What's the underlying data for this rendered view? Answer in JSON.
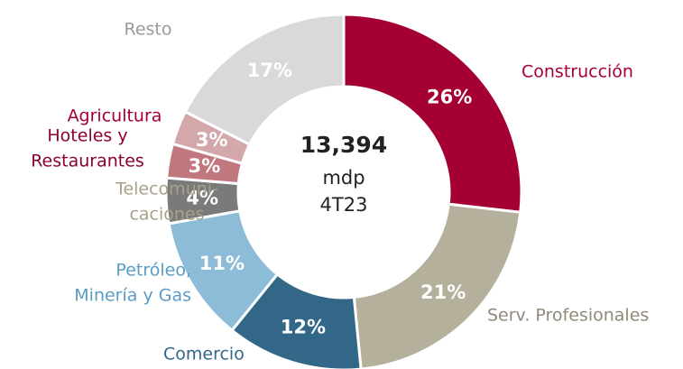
{
  "chart_data": {
    "type": "donut",
    "categories": [
      [
        "Construcción"
      ],
      [
        "Serv. Profesionales"
      ],
      [
        "Comercio"
      ],
      [
        "Petróleo,",
        "Minería y Gas"
      ],
      [
        "Telecomuni-",
        "caciones"
      ],
      [
        "Hoteles y",
        "Restaurantes"
      ],
      [
        "Agricultura"
      ],
      [
        "Resto"
      ]
    ],
    "values": [
      26,
      21,
      12,
      11,
      4,
      3,
      3,
      17
    ],
    "value_labels": [
      "26%",
      "21%",
      "12%",
      "11%",
      "4%",
      "3%",
      "3%",
      "17%"
    ],
    "colors": [
      "#a50034",
      "#b5b09c",
      "#336788",
      "#8dbcd8",
      "#7a7a7a",
      "#c0787e",
      "#d4a7ab",
      "#d9d9d9"
    ],
    "label_colors": [
      "#a50034",
      "#8f8a78",
      "#336788",
      "#5a9cc4",
      "#a8a18a",
      "#8b0030",
      "#a50034",
      "#9a9a9a"
    ],
    "center_text": [
      "13,394",
      "mdp",
      "4T23"
    ]
  }
}
